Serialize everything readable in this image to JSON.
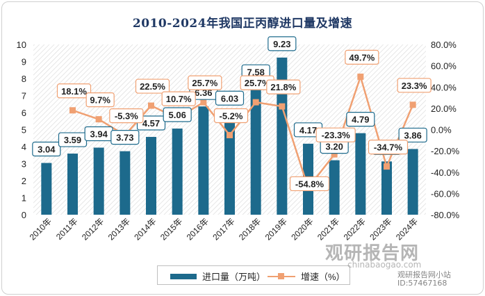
{
  "chart_data": {
    "type": "bar",
    "title": "2010-2024年我国正丙醇进口量及增速",
    "categories": [
      "2010年",
      "2011年",
      "2012年",
      "2013年",
      "2014年",
      "2015年",
      "2016年",
      "2017年",
      "2018年",
      "2019年",
      "2020年",
      "2021年",
      "2022年",
      "2023年",
      "2024年"
    ],
    "series": [
      {
        "name": "进口量（万吨）",
        "type": "bar",
        "axis": "left",
        "color": "#1d6a8c",
        "values": [
          3.04,
          3.59,
          3.94,
          3.73,
          4.57,
          5.06,
          6.36,
          6.03,
          7.58,
          9.23,
          4.17,
          3.2,
          4.79,
          3.13,
          3.86
        ],
        "labels": [
          "3.04",
          "3.59",
          "3.94",
          "3.73",
          "4.57",
          "5.06",
          "6.36",
          "6.03",
          "7.58",
          "9.23",
          "4.17",
          "3.20",
          "4.79",
          "3.13",
          "3.86"
        ]
      },
      {
        "name": "增速（%）",
        "type": "line",
        "axis": "right",
        "color": "#f0a072",
        "values": [
          null,
          18.1,
          9.7,
          -5.3,
          22.5,
          10.7,
          25.7,
          -5.2,
          25.7,
          21.8,
          -54.8,
          -23.3,
          49.7,
          -34.7,
          23.3
        ],
        "labels": [
          "",
          "18.1%",
          "9.7%",
          "-5.3%",
          "22.5%",
          "10.7%",
          "25.7%",
          "-5.2%",
          "25.7%",
          "21.8%",
          "-54.8%",
          "-23.3%",
          "49.7%",
          "-34.7%",
          "23.3%"
        ]
      }
    ],
    "y_left": {
      "min": 0,
      "max": 10,
      "ticks": [
        "0",
        "1",
        "2",
        "3",
        "4",
        "5",
        "6",
        "7",
        "8",
        "9",
        "10"
      ]
    },
    "y_right": {
      "min": -80,
      "max": 80,
      "ticks": [
        "-80.0%",
        "-60.0%",
        "-40.0%",
        "-20.0%",
        "0.0%",
        "20.0%",
        "40.0%",
        "60.0%",
        "80.0%"
      ]
    },
    "grid": false,
    "legend_position": "bottom"
  },
  "legend": {
    "bar_label": "进口量（万吨）",
    "line_label": "增速（%）"
  },
  "watermark": {
    "logo": "观研报告网",
    "url": "chinabaogao.com",
    "badge_name": "观研报告网小站",
    "badge_id": "ID:57467168"
  }
}
